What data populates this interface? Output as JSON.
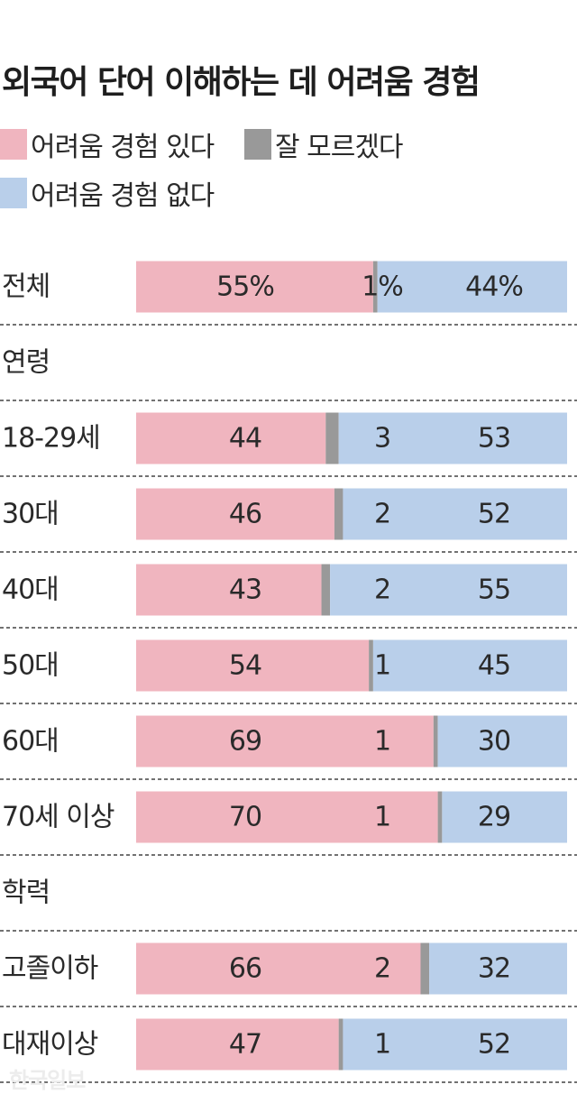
{
  "title": "외국어 단어 이해하는 데 어려움 경험",
  "legend": [
    {
      "label": "어려움 경험 있다",
      "color": "#f0b5bf"
    },
    {
      "label": "잘 모르겠다",
      "color": "#999999"
    },
    {
      "label": "어려움 경험 없다",
      "color": "#b9cfea"
    }
  ],
  "watermark": "한국일보",
  "chart_data": {
    "type": "bar",
    "stacked": true,
    "orientation": "horizontal",
    "series": [
      {
        "name": "어려움 경험 있다",
        "color": "#f0b5bf"
      },
      {
        "name": "잘 모르겠다",
        "color": "#999999"
      },
      {
        "name": "어려움 경험 없다",
        "color": "#b9cfea"
      }
    ],
    "rows": [
      {
        "kind": "bar",
        "label": "전체",
        "values": [
          55,
          1,
          44
        ],
        "value_labels": [
          "55%",
          "1%",
          "44%"
        ]
      },
      {
        "kind": "header",
        "label": "연령"
      },
      {
        "kind": "bar",
        "label": "18-29세",
        "values": [
          44,
          3,
          53
        ],
        "value_labels": [
          "44",
          "3",
          "53"
        ]
      },
      {
        "kind": "bar",
        "label": "30대",
        "values": [
          46,
          2,
          52
        ],
        "value_labels": [
          "46",
          "2",
          "52"
        ]
      },
      {
        "kind": "bar",
        "label": "40대",
        "values": [
          43,
          2,
          55
        ],
        "value_labels": [
          "43",
          "2",
          "55"
        ]
      },
      {
        "kind": "bar",
        "label": "50대",
        "values": [
          54,
          1,
          45
        ],
        "value_labels": [
          "54",
          "1",
          "45"
        ]
      },
      {
        "kind": "bar",
        "label": "60대",
        "values": [
          69,
          1,
          30
        ],
        "value_labels": [
          "69",
          "1",
          "30"
        ]
      },
      {
        "kind": "bar",
        "label": "70세 이상",
        "values": [
          70,
          1,
          29
        ],
        "value_labels": [
          "70",
          "1",
          "29"
        ]
      },
      {
        "kind": "header",
        "label": "학력"
      },
      {
        "kind": "bar",
        "label": "고졸이하",
        "values": [
          66,
          2,
          32
        ],
        "value_labels": [
          "66",
          "2",
          "32"
        ]
      },
      {
        "kind": "bar",
        "label": "대재이상",
        "values": [
          47,
          1,
          52
        ],
        "value_labels": [
          "47",
          "1",
          "52"
        ]
      }
    ]
  }
}
